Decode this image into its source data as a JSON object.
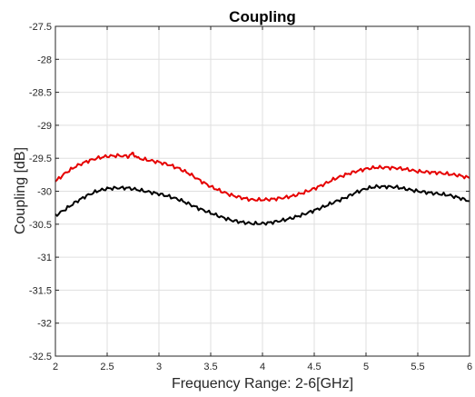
{
  "chart_data": {
    "type": "line",
    "title": "Coupling",
    "xlabel": "Frequency Range: 2-6[GHz]",
    "ylabel": "Coupling [dB]",
    "xlim": [
      2,
      6
    ],
    "ylim": [
      -32.5,
      -27.5
    ],
    "grid": true,
    "legend": "none",
    "x_ticks": [
      "2",
      "2.5",
      "3",
      "3.5",
      "4",
      "4.5",
      "5",
      "5.5",
      "6"
    ],
    "y_ticks": [
      "-27.5",
      "-28",
      "-28.5",
      "-29",
      "-29.5",
      "-30",
      "-30.5",
      "-31",
      "-31.5",
      "-32",
      "-32.5"
    ],
    "series": [
      {
        "color": "#e60000",
        "x": [
          2.0,
          2.1,
          2.2,
          2.3,
          2.4,
          2.5,
          2.6,
          2.7,
          2.75,
          2.8,
          2.9,
          3.0,
          3.1,
          3.2,
          3.3,
          3.4,
          3.5,
          3.6,
          3.7,
          3.8,
          3.9,
          4.0,
          4.1,
          4.2,
          4.3,
          4.4,
          4.5,
          4.6,
          4.7,
          4.8,
          4.9,
          5.0,
          5.1,
          5.2,
          5.3,
          5.4,
          5.5,
          5.6,
          5.7,
          5.8,
          5.9,
          6.0
        ],
        "y": [
          -29.85,
          -29.72,
          -29.62,
          -29.55,
          -29.5,
          -29.47,
          -29.46,
          -29.47,
          -29.43,
          -29.5,
          -29.53,
          -29.56,
          -29.6,
          -29.66,
          -29.74,
          -29.84,
          -29.93,
          -30.0,
          -30.06,
          -30.1,
          -30.13,
          -30.13,
          -30.12,
          -30.1,
          -30.07,
          -30.02,
          -29.96,
          -29.89,
          -29.81,
          -29.75,
          -29.7,
          -29.66,
          -29.64,
          -29.64,
          -29.65,
          -29.67,
          -29.7,
          -29.71,
          -29.72,
          -29.74,
          -29.76,
          -29.8
        ]
      },
      {
        "color": "#000000",
        "x": [
          2.0,
          2.1,
          2.2,
          2.3,
          2.4,
          2.5,
          2.6,
          2.7,
          2.8,
          2.9,
          3.0,
          3.1,
          3.2,
          3.3,
          3.4,
          3.5,
          3.6,
          3.7,
          3.8,
          3.9,
          4.0,
          4.1,
          4.2,
          4.3,
          4.4,
          4.5,
          4.6,
          4.7,
          4.8,
          4.9,
          5.0,
          5.1,
          5.2,
          5.3,
          5.4,
          5.5,
          5.6,
          5.7,
          5.8,
          5.9,
          6.0
        ],
        "y": [
          -30.37,
          -30.27,
          -30.16,
          -30.07,
          -30.0,
          -29.96,
          -29.95,
          -29.95,
          -29.98,
          -30.01,
          -30.04,
          -30.08,
          -30.13,
          -30.2,
          -30.27,
          -30.33,
          -30.39,
          -30.44,
          -30.47,
          -30.49,
          -30.49,
          -30.47,
          -30.44,
          -30.4,
          -30.35,
          -30.29,
          -30.23,
          -30.16,
          -30.1,
          -30.02,
          -29.96,
          -29.93,
          -29.93,
          -29.94,
          -29.97,
          -30.0,
          -30.02,
          -30.04,
          -30.06,
          -30.1,
          -30.15
        ]
      }
    ]
  }
}
